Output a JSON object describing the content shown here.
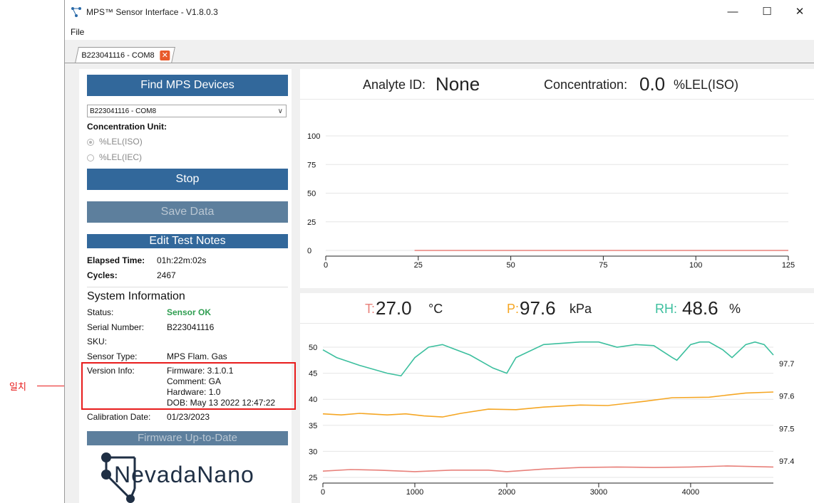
{
  "window": {
    "title": "MPS™ Sensor Interface - V1.8.0.3",
    "minimize_glyph": "—",
    "maximize_glyph": "☐",
    "close_glyph": "✕",
    "menu": [
      "File"
    ],
    "tab": {
      "label": "B223041116 - COM8",
      "close_glyph": "✕"
    }
  },
  "left_panel": {
    "find_button": "Find MPS Devices",
    "device_select": {
      "value": "B223041116 - COM8",
      "arrow": "∨"
    },
    "conc_unit_label": "Concentration Unit:",
    "units": [
      {
        "label": "%LEL(ISO)",
        "selected": true
      },
      {
        "label": "%LEL(IEC)",
        "selected": false
      }
    ],
    "stop_button": "Stop",
    "save_button": "Save Data",
    "edit_notes_button": "Edit Test Notes",
    "elapsed_label": "Elapsed Time:",
    "elapsed_value": "01h:22m:02s",
    "cycles_label": "Cycles:",
    "cycles_value": "2467",
    "sysinfo_title": "System Information",
    "status_label": "Status:",
    "status_value": "Sensor OK",
    "serial_label": "Serial Number:",
    "serial_value": "B223041116",
    "sku_label": "SKU:",
    "sensor_type_label": "Sensor Type:",
    "sensor_type_value": "MPS Flam. Gas",
    "version_label": "Version Info:",
    "version_lines": [
      "Firmware: 3.1.0.1",
      "Comment: GA",
      "Hardware: 1.0",
      "DOB: May 13 2022 12:47:22"
    ],
    "calibration_label": "Calibration Date:",
    "calibration_value": "01/23/2023",
    "firmware_button": "Firmware Up-to-Date",
    "logo_text": "NevadaNano"
  },
  "annotation": {
    "text": "일치"
  },
  "colors": {
    "button_blue": "#32689b",
    "status_green": "#2f9e51",
    "temp": "#e8807a",
    "pressure": "#f5a623",
    "humidity": "#3cbf9e",
    "conc_line": "#e8807a",
    "highlight": "#e81c1c"
  },
  "concentration_header": {
    "analyte_label": "Analyte ID:",
    "analyte_value": "None",
    "conc_label": "Concentration:",
    "conc_value": "0.0",
    "conc_unit": "%LEL(ISO)"
  },
  "env_header": {
    "t_label": "T:",
    "t_value": "27.0",
    "t_unit": "°C",
    "p_label": "P:",
    "p_value": "97.6",
    "p_unit": "kPa",
    "rh_label": "RH:",
    "rh_value": "48.6",
    "rh_unit": "%"
  },
  "chart_data": [
    {
      "type": "line",
      "xlim": [
        0,
        125
      ],
      "ylim": [
        0,
        100
      ],
      "x_ticks": [
        0,
        25,
        50,
        75,
        100,
        125
      ],
      "y_ticks": [
        0,
        25,
        50,
        75,
        100
      ],
      "grid": true,
      "series": [
        {
          "x": [
            0,
            23.9,
            24,
            125
          ],
          "y": [
            null,
            null,
            0,
            0
          ]
        }
      ]
    },
    {
      "type": "line",
      "xlim": [
        0,
        4900
      ],
      "ylim": [
        25,
        50
      ],
      "y2lim": [
        97.35,
        97.75
      ],
      "x_ticks": [
        0,
        1000,
        2000,
        3000,
        4000
      ],
      "y_ticks": [
        25,
        30,
        35,
        40,
        45,
        50
      ],
      "y2_ticks": [
        97.4,
        97.5,
        97.6,
        97.7
      ],
      "y2_tick_labels": [
        "97.4",
        "97.5",
        "97.6",
        "97.7"
      ],
      "grid": true,
      "series": [
        {
          "axis": "left",
          "x": [
            0,
            300,
            600,
            1000,
            1400,
            1800,
            2000,
            2400,
            2800,
            3200,
            3600,
            4000,
            4400,
            4900
          ],
          "y": [
            26.2,
            26.5,
            26.4,
            26.1,
            26.4,
            26.4,
            26.1,
            26.6,
            26.9,
            27.0,
            26.9,
            27.0,
            27.2,
            27.0
          ]
        },
        {
          "axis": "left",
          "x": [
            0,
            200,
            400,
            700,
            900,
            1100,
            1300,
            1500,
            1800,
            2100,
            2400,
            2800,
            3100,
            3500,
            3800,
            4200,
            4600,
            4900
          ],
          "y": [
            37.2,
            37.0,
            37.3,
            37.0,
            37.2,
            36.8,
            36.6,
            37.3,
            38.1,
            38.0,
            38.5,
            38.9,
            38.8,
            39.6,
            40.3,
            40.4,
            41.2,
            41.4
          ]
        },
        {
          "axis": "left",
          "x": [
            0,
            150,
            400,
            700,
            850,
            1000,
            1150,
            1300,
            1600,
            1850,
            2000,
            2100,
            2400,
            2800,
            3000,
            3200,
            3400,
            3600,
            3800,
            3850,
            4000,
            4100,
            4200,
            4350,
            4450,
            4600,
            4700,
            4800,
            4900
          ],
          "y": [
            49.5,
            48.0,
            46.5,
            45.0,
            44.5,
            48.0,
            50.0,
            50.5,
            48.5,
            46.0,
            45.0,
            48.0,
            50.5,
            51.0,
            51.0,
            50.0,
            50.5,
            50.3,
            48.0,
            47.5,
            50.5,
            51.0,
            51.0,
            49.5,
            48.0,
            50.5,
            51.0,
            50.5,
            48.5
          ]
        }
      ]
    }
  ]
}
